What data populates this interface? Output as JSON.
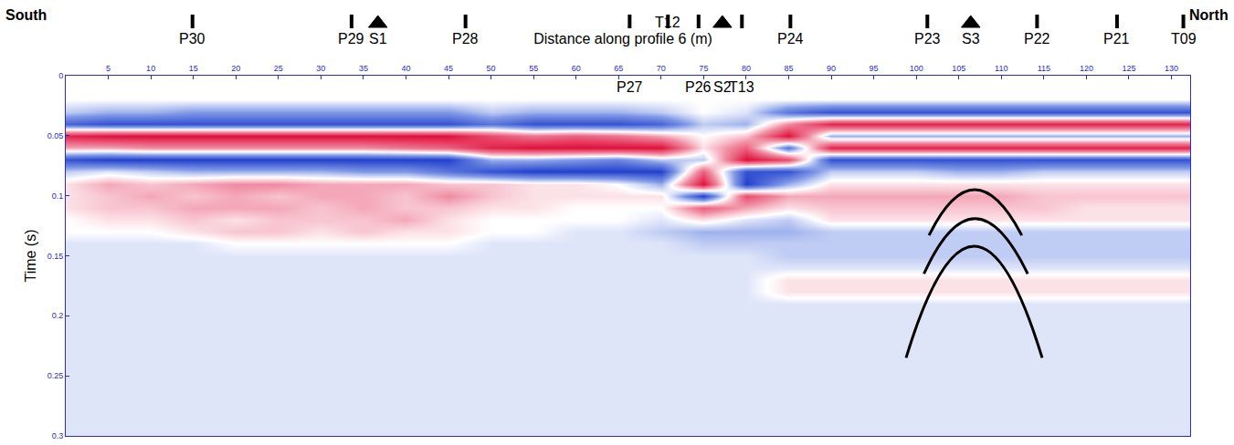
{
  "chart_data": {
    "type": "heatmap",
    "title": "Distance along profile 6 (m)",
    "y_label": "Time (s)",
    "side_labels": {
      "left": "South",
      "right": "North"
    },
    "xlim": [
      0,
      132.2
    ],
    "xticks": [
      5,
      10,
      15,
      20,
      25,
      30,
      35,
      40,
      45,
      50,
      55,
      60,
      65,
      70,
      75,
      80,
      85,
      90,
      95,
      100,
      105,
      110,
      115,
      120,
      125,
      130
    ],
    "ylim": [
      0.3,
      0
    ],
    "yticks": [
      0,
      0.05,
      0.1,
      0.15,
      0.2,
      0.25,
      0.3
    ],
    "tick_labels": true,
    "grid": false,
    "color_range": [
      -1,
      1
    ],
    "x": [
      0,
      5,
      10,
      15,
      20,
      25,
      30,
      35,
      40,
      45,
      50,
      55,
      60,
      65,
      70,
      75,
      80,
      85,
      90,
      95,
      100,
      105,
      110,
      115,
      120,
      125,
      130
    ],
    "time": [
      0,
      0.01,
      0.02,
      0.03,
      0.04,
      0.05,
      0.06,
      0.07,
      0.08,
      0.09,
      0.1,
      0.11,
      0.12,
      0.13,
      0.14,
      0.15,
      0.16,
      0.17,
      0.18,
      0.19,
      0.2,
      0.21,
      0.22,
      0.23,
      0.24,
      0.25,
      0.26,
      0.27,
      0.28,
      0.29,
      0.3
    ],
    "amplitude": [
      [
        0,
        0,
        0,
        -0.2,
        -0.7,
        0.9,
        0.3,
        -0.8,
        -0.2,
        0.1,
        0.1,
        0.1,
        0,
        0,
        -0.1,
        -0.1,
        -0.1,
        -0.1,
        -0.1,
        -0.1,
        -0.1,
        -0.1,
        -0.1,
        -0.1,
        -0.1,
        -0.1,
        -0.1,
        -0.1,
        -0.1,
        -0.1,
        -0.1
      ],
      [
        0,
        0,
        0,
        -0.3,
        -0.8,
        1,
        0.3,
        -0.9,
        -0.1,
        0.3,
        0.2,
        0.2,
        0.1,
        0,
        -0.1,
        -0.1,
        -0.1,
        -0.1,
        -0.1,
        -0.1,
        -0.1,
        -0.1,
        -0.1,
        -0.1,
        -0.1,
        -0.1,
        -0.1,
        -0.1,
        -0.1,
        -0.1,
        -0.1
      ],
      [
        0,
        0,
        0,
        -0.3,
        -0.8,
        1,
        0.4,
        -0.9,
        -0.2,
        0.2,
        0.3,
        0.2,
        0.1,
        0,
        -0.1,
        -0.1,
        -0.1,
        -0.1,
        -0.1,
        -0.1,
        -0.1,
        -0.1,
        -0.1,
        -0.1,
        -0.1,
        -0.1,
        -0.1,
        -0.1,
        -0.1,
        -0.1,
        -0.1
      ],
      [
        0,
        0,
        0,
        -0.4,
        -0.8,
        1,
        0.4,
        -0.9,
        -0.3,
        0.3,
        0.2,
        0.3,
        0.2,
        0.1,
        -0.1,
        -0.1,
        -0.1,
        -0.1,
        -0.1,
        -0.1,
        -0.1,
        -0.1,
        -0.1,
        -0.1,
        -0.1,
        -0.1,
        -0.1,
        -0.1,
        -0.1,
        -0.1,
        -0.1
      ],
      [
        0,
        0,
        0,
        -0.4,
        -0.8,
        1,
        0.4,
        -0.9,
        -0.3,
        0.4,
        0.3,
        0.3,
        0.1,
        0.2,
        0,
        -0.1,
        -0.1,
        -0.1,
        -0.1,
        -0.1,
        -0.1,
        -0.1,
        -0.1,
        -0.1,
        -0.1,
        -0.1,
        -0.1,
        -0.1,
        -0.1,
        -0.1,
        -0.1
      ],
      [
        0,
        0,
        0,
        -0.4,
        -0.8,
        1,
        0.4,
        -0.9,
        -0.3,
        0.4,
        0.2,
        0.3,
        0.2,
        0.2,
        0,
        -0.1,
        -0.1,
        -0.1,
        -0.1,
        -0.1,
        -0.1,
        -0.1,
        -0.1,
        -0.1,
        -0.1,
        -0.1,
        -0.1,
        -0.1,
        -0.1,
        -0.1,
        -0.1
      ],
      [
        0,
        0,
        0,
        -0.4,
        -0.8,
        1,
        0.4,
        -0.9,
        -0.3,
        0.3,
        0.3,
        0.2,
        0.2,
        0.1,
        0,
        -0.1,
        -0.1,
        -0.1,
        -0.1,
        -0.1,
        -0.1,
        -0.1,
        -0.1,
        -0.1,
        -0.1,
        -0.1,
        -0.1,
        -0.1,
        -0.1,
        -0.1,
        -0.1
      ],
      [
        0,
        0,
        0,
        -0.4,
        -0.8,
        1,
        0.4,
        -0.9,
        -0.4,
        0.3,
        0.3,
        0.3,
        0.2,
        0.2,
        0,
        -0.1,
        -0.1,
        -0.1,
        -0.1,
        -0.1,
        -0.1,
        -0.1,
        -0.1,
        -0.1,
        -0.1,
        -0.1,
        -0.1,
        -0.1,
        -0.1,
        -0.1,
        -0.1
      ],
      [
        0,
        0,
        0,
        -0.4,
        -0.8,
        1,
        0.5,
        -0.9,
        -0.4,
        0.3,
        0.2,
        0.2,
        0.3,
        0.1,
        0,
        -0.1,
        -0.1,
        -0.1,
        -0.1,
        -0.1,
        -0.1,
        -0.1,
        -0.1,
        -0.1,
        -0.1,
        -0.1,
        -0.1,
        -0.1,
        -0.1,
        -0.1,
        -0.1
      ],
      [
        0,
        0,
        0,
        -0.4,
        -0.8,
        1,
        0.6,
        -0.9,
        -0.6,
        0.2,
        0.4,
        0.2,
        0.1,
        0.1,
        0,
        -0.1,
        -0.1,
        -0.1,
        -0.1,
        -0.1,
        -0.1,
        -0.1,
        -0.1,
        -0.1,
        -0.1,
        -0.1,
        -0.1,
        -0.1,
        -0.1,
        -0.1,
        -0.1
      ],
      [
        0,
        0,
        0,
        -0.2,
        -0.6,
        0.7,
        0.9,
        -0.3,
        -0.8,
        0.2,
        0.2,
        0.1,
        0,
        0,
        -0.1,
        -0.1,
        -0.1,
        -0.1,
        -0.1,
        -0.1,
        -0.1,
        -0.1,
        -0.1,
        -0.1,
        -0.1,
        -0.1,
        -0.1,
        -0.1,
        -0.1,
        -0.1,
        -0.1
      ],
      [
        0,
        0,
        0,
        -0.3,
        -0.8,
        0.5,
        1,
        -0.3,
        -0.9,
        0.1,
        0.1,
        0.1,
        0,
        0,
        -0.1,
        -0.1,
        -0.1,
        -0.1,
        -0.1,
        -0.1,
        -0.1,
        -0.1,
        -0.1,
        -0.1,
        -0.1,
        -0.1,
        -0.1,
        -0.1,
        -0.1,
        -0.1,
        -0.1
      ],
      [
        0,
        0,
        0,
        -0.3,
        -0.8,
        0.6,
        1,
        -0.4,
        -0.9,
        0.1,
        0.1,
        0,
        0,
        -0.1,
        -0.1,
        -0.1,
        -0.1,
        -0.1,
        -0.1,
        -0.1,
        -0.1,
        -0.1,
        -0.1,
        -0.1,
        -0.1,
        -0.1,
        -0.1,
        -0.1,
        -0.1,
        -0.1,
        -0.1
      ],
      [
        0,
        0,
        0,
        -0.3,
        -0.8,
        0.5,
        1,
        -0.5,
        -0.9,
        0,
        0.1,
        0,
        0,
        -0.1,
        -0.1,
        -0.1,
        -0.1,
        -0.1,
        -0.1,
        -0.1,
        -0.1,
        -0.1,
        -0.1,
        -0.1,
        -0.1,
        -0.1,
        -0.1,
        -0.1,
        -0.1,
        -0.1,
        -0.1
      ],
      [
        0,
        0,
        0,
        -0.2,
        -0.7,
        0.3,
        1,
        -0.2,
        -0.9,
        -0.3,
        0.1,
        0,
        -0.1,
        -0.2,
        -0.1,
        -0.1,
        -0.1,
        -0.1,
        -0.1,
        -0.1,
        -0.1,
        -0.1,
        -0.1,
        -0.1,
        -0.1,
        -0.1,
        -0.1,
        -0.1,
        -0.1,
        -0.1,
        -0.1
      ],
      [
        0,
        0,
        0,
        0,
        -0.2,
        0,
        0.1,
        -0.2,
        0.6,
        1,
        -0.9,
        0.6,
        0.1,
        -0.3,
        -0.2,
        -0.1,
        -0.1,
        -0.1,
        -0.1,
        -0.1,
        -0.1,
        -0.1,
        -0.1,
        -0.1,
        -0.1,
        -0.1,
        -0.1,
        -0.1,
        -0.1,
        -0.1,
        -0.1
      ],
      [
        0,
        0,
        0,
        -0.1,
        -0.3,
        0.2,
        0.6,
        1,
        -0.8,
        -0.9,
        0.7,
        0.3,
        -0.1,
        -0.3,
        -0.2,
        -0.1,
        -0.1,
        -0.1,
        -0.1,
        -0.1,
        -0.1,
        -0.1,
        -0.1,
        -0.1,
        -0.1,
        -0.1,
        -0.1,
        -0.1,
        -0.1,
        -0.1,
        -0.1
      ],
      [
        0,
        0,
        0,
        -0.6,
        0.4,
        1,
        -0.6,
        0.7,
        -0.8,
        -0.3,
        0.3,
        0.1,
        -0.2,
        -0.3,
        -0.2,
        -0.2,
        -0.1,
        0.1,
        0.1,
        -0.1,
        -0.1,
        -0.1,
        -0.1,
        -0.1,
        -0.1,
        -0.1,
        -0.1,
        -0.1,
        -0.1,
        -0.1,
        -0.1
      ],
      [
        0,
        0,
        0,
        -0.8,
        0.9,
        -0.3,
        0.9,
        -0.8,
        -0.2,
        0.1,
        0.3,
        0.2,
        0.1,
        -0.2,
        -0.2,
        -0.2,
        -0.1,
        0.1,
        0.1,
        -0.1,
        -0.1,
        -0.1,
        -0.1,
        -0.1,
        -0.1,
        -0.1,
        -0.1,
        -0.1,
        -0.1,
        -0.1,
        -0.1
      ],
      [
        0,
        0,
        0,
        -0.8,
        0.9,
        -0.3,
        0.9,
        -0.8,
        -0.2,
        0.1,
        0.3,
        0.2,
        0.1,
        -0.2,
        -0.2,
        -0.2,
        -0.1,
        0.1,
        0.1,
        -0.1,
        -0.1,
        -0.1,
        -0.1,
        -0.1,
        -0.1,
        -0.1,
        -0.1,
        -0.1,
        -0.1,
        -0.1,
        -0.1
      ],
      [
        0,
        0,
        0,
        -0.8,
        0.9,
        -0.3,
        0.9,
        -0.8,
        -0.2,
        0.1,
        0.3,
        0.2,
        0.1,
        -0.2,
        -0.2,
        -0.2,
        -0.1,
        0.1,
        0.1,
        -0.1,
        -0.1,
        -0.1,
        -0.1,
        -0.1,
        -0.1,
        -0.1,
        -0.1,
        -0.1,
        -0.1,
        -0.1,
        -0.1
      ],
      [
        0,
        0,
        0,
        -0.8,
        0.9,
        -0.3,
        0.9,
        -0.8,
        -0.3,
        0.1,
        0.3,
        0.2,
        0.1,
        -0.2,
        -0.2,
        -0.2,
        -0.1,
        0.1,
        0.1,
        -0.1,
        -0.1,
        -0.1,
        -0.1,
        -0.1,
        -0.1,
        -0.1,
        -0.1,
        -0.1,
        -0.1,
        -0.1,
        -0.1
      ],
      [
        0,
        0,
        0,
        -0.8,
        0.9,
        -0.3,
        0.9,
        -0.8,
        -0.3,
        0.1,
        0.3,
        0.2,
        0.1,
        -0.2,
        -0.2,
        -0.2,
        -0.1,
        0.1,
        0.1,
        -0.1,
        -0.1,
        -0.1,
        -0.1,
        -0.1,
        -0.1,
        -0.1,
        -0.1,
        -0.1,
        -0.1,
        -0.1,
        -0.1
      ],
      [
        0,
        0,
        0,
        -0.8,
        0.9,
        -0.3,
        0.9,
        -0.8,
        -0.2,
        0.1,
        0.2,
        0.2,
        0.1,
        -0.2,
        -0.2,
        -0.2,
        -0.1,
        0.1,
        0.1,
        -0.1,
        -0.1,
        -0.1,
        -0.1,
        -0.1,
        -0.1,
        -0.1,
        -0.1,
        -0.1,
        -0.1,
        -0.1,
        -0.1
      ],
      [
        0,
        0,
        0,
        -0.8,
        0.9,
        -0.3,
        0.9,
        -0.8,
        -0.2,
        0.1,
        0.2,
        0.1,
        0.1,
        -0.2,
        -0.2,
        -0.2,
        -0.1,
        0.1,
        0.1,
        -0.1,
        -0.1,
        -0.1,
        -0.1,
        -0.1,
        -0.1,
        -0.1,
        -0.1,
        -0.1,
        -0.1,
        -0.1,
        -0.1
      ],
      [
        0,
        0,
        0,
        -0.8,
        0.9,
        -0.3,
        0.9,
        -0.8,
        -0.2,
        0.1,
        0.2,
        0.1,
        0.1,
        -0.2,
        -0.2,
        -0.2,
        -0.1,
        0.1,
        0.1,
        -0.1,
        -0.1,
        -0.1,
        -0.1,
        -0.1,
        -0.1,
        -0.1,
        -0.1,
        -0.1,
        -0.1,
        -0.1,
        -0.1
      ],
      [
        0,
        0,
        0,
        -0.8,
        0.9,
        -0.3,
        0.9,
        -0.8,
        -0.2,
        0.1,
        0.2,
        0.1,
        0.1,
        -0.2,
        -0.2,
        -0.2,
        -0.1,
        0.1,
        0.1,
        -0.1,
        -0.1,
        -0.1,
        -0.1,
        -0.1,
        -0.1,
        -0.1,
        -0.1,
        -0.1,
        -0.1,
        -0.1,
        -0.1
      ]
    ],
    "annotations": [
      {
        "text": "P30",
        "x": 14.9,
        "position": "above",
        "marker": "bar"
      },
      {
        "text": "P29",
        "x": 33.6,
        "position": "above",
        "marker": "bar"
      },
      {
        "text": "S1",
        "x": 36.7,
        "position": "above",
        "marker": "triangle"
      },
      {
        "text": "P28",
        "x": 47,
        "position": "above",
        "marker": "bar"
      },
      {
        "text": "P27",
        "x": 66.3,
        "position": "below",
        "marker": "bar"
      },
      {
        "text": "T12",
        "x": 70.8,
        "position": "top",
        "marker": "bar"
      },
      {
        "text": "P26",
        "x": 74.4,
        "position": "below",
        "marker": "bar"
      },
      {
        "text": "S2",
        "x": 77.2,
        "position": "below",
        "marker": "triangle"
      },
      {
        "text": "T13",
        "x": 79.5,
        "position": "below",
        "marker": "bar"
      },
      {
        "text": "P24",
        "x": 85.2,
        "position": "above",
        "marker": "bar"
      },
      {
        "text": "P23",
        "x": 101.3,
        "position": "above",
        "marker": "bar"
      },
      {
        "text": "S3",
        "x": 106.4,
        "position": "above",
        "marker": "triangle"
      },
      {
        "text": "P22",
        "x": 114.2,
        "position": "above",
        "marker": "bar"
      },
      {
        "text": "P21",
        "x": 123.6,
        "position": "above",
        "marker": "bar"
      },
      {
        "text": "T09",
        "x": 131.4,
        "position": "above",
        "marker": "bar"
      }
    ],
    "hyperbolas": [
      {
        "apex_x": 106.8,
        "apex_t": 0.095,
        "left_x": 101.5,
        "right_x": 112.4,
        "end_t": 0.133
      },
      {
        "apex_x": 106.8,
        "apex_t": 0.119,
        "left_x": 100.9,
        "right_x": 113.1,
        "end_t": 0.165
      },
      {
        "apex_x": 106.8,
        "apex_t": 0.142,
        "left_x": 98.8,
        "right_x": 114.8,
        "end_t": 0.235
      }
    ]
  }
}
